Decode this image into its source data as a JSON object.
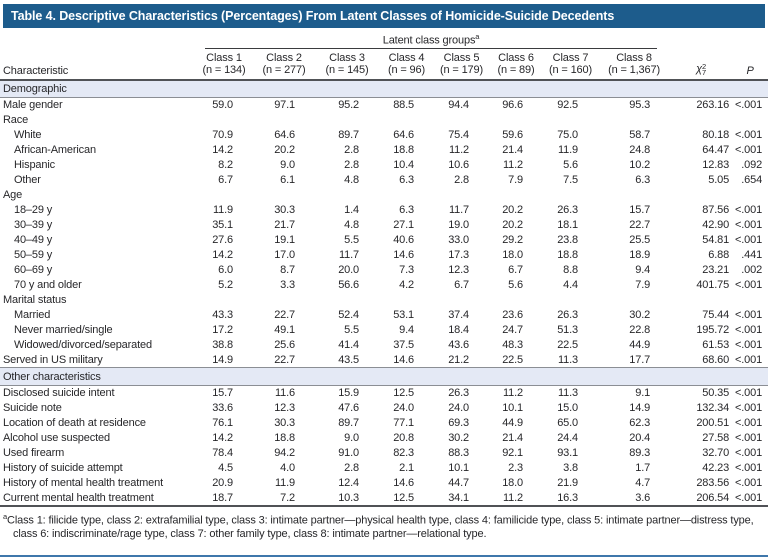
{
  "title": "Table 4. Descriptive Characteristics (Percentages) From Latent Classes of Homicide-Suicide Decedents",
  "header": {
    "characteristic_label": "Characteristic",
    "spanner": {
      "label": "Latent class groups",
      "superscript": "a"
    },
    "class_columns": [
      {
        "line1": "Class 1",
        "line2": "(n = 134)"
      },
      {
        "line1": "Class 2",
        "line2": "(n = 277)"
      },
      {
        "line1": "Class 3",
        "line2": "(n = 145)"
      },
      {
        "line1": "Class 4",
        "line2": "(n = 96)"
      },
      {
        "line1": "Class 5",
        "line2": "(n = 179)"
      },
      {
        "line1": "Class 6",
        "line2": "(n = 89)"
      },
      {
        "line1": "Class 7",
        "line2": "(n = 160)"
      },
      {
        "line1": "Class 8",
        "line2": "(n = 1,367)"
      }
    ],
    "chi": {
      "base": "χ",
      "sup": "2",
      "sub": "7"
    },
    "p_label": "P"
  },
  "rows": [
    {
      "type": "section",
      "label": "Demographic"
    },
    {
      "type": "data",
      "indent": false,
      "label": "Male gender",
      "values": [
        "59.0",
        "97.1",
        "95.2",
        "88.5",
        "94.4",
        "96.6",
        "92.5",
        "95.3"
      ],
      "chi": "263.16",
      "p": "<.001"
    },
    {
      "type": "subheader",
      "label": "Race"
    },
    {
      "type": "data",
      "indent": true,
      "label": "White",
      "values": [
        "70.9",
        "64.6",
        "89.7",
        "64.6",
        "75.4",
        "59.6",
        "75.0",
        "58.7"
      ],
      "chi": "80.18",
      "p": "<.001"
    },
    {
      "type": "data",
      "indent": true,
      "label": "African-American",
      "values": [
        "14.2",
        "20.2",
        "2.8",
        "18.8",
        "11.2",
        "21.4",
        "11.9",
        "24.8"
      ],
      "chi": "64.47",
      "p": "<.001"
    },
    {
      "type": "data",
      "indent": true,
      "label": "Hispanic",
      "values": [
        "8.2",
        "9.0",
        "2.8",
        "10.4",
        "10.6",
        "11.2",
        "5.6",
        "10.2"
      ],
      "chi": "12.83",
      "p": ".092"
    },
    {
      "type": "data",
      "indent": true,
      "label": "Other",
      "values": [
        "6.7",
        "6.1",
        "4.8",
        "6.3",
        "2.8",
        "7.9",
        "7.5",
        "6.3"
      ],
      "chi": "5.05",
      "p": ".654"
    },
    {
      "type": "subheader",
      "label": "Age"
    },
    {
      "type": "data",
      "indent": true,
      "label": "18–29 y",
      "values": [
        "11.9",
        "30.3",
        "1.4",
        "6.3",
        "11.7",
        "20.2",
        "26.3",
        "15.7"
      ],
      "chi": "87.56",
      "p": "<.001"
    },
    {
      "type": "data",
      "indent": true,
      "label": "30–39 y",
      "values": [
        "35.1",
        "21.7",
        "4.8",
        "27.1",
        "19.0",
        "20.2",
        "18.1",
        "22.7"
      ],
      "chi": "42.90",
      "p": "<.001"
    },
    {
      "type": "data",
      "indent": true,
      "label": "40–49 y",
      "values": [
        "27.6",
        "19.1",
        "5.5",
        "40.6",
        "33.0",
        "29.2",
        "23.8",
        "25.5"
      ],
      "chi": "54.81",
      "p": "<.001"
    },
    {
      "type": "data",
      "indent": true,
      "label": "50–59 y",
      "values": [
        "14.2",
        "17.0",
        "11.7",
        "14.6",
        "17.3",
        "18.0",
        "18.8",
        "18.9"
      ],
      "chi": "6.88",
      "p": ".441"
    },
    {
      "type": "data",
      "indent": true,
      "label": "60–69 y",
      "values": [
        "6.0",
        "8.7",
        "20.0",
        "7.3",
        "12.3",
        "6.7",
        "8.8",
        "9.4"
      ],
      "chi": "23.21",
      "p": ".002"
    },
    {
      "type": "data",
      "indent": true,
      "label": "70 y and older",
      "values": [
        "5.2",
        "3.3",
        "56.6",
        "4.2",
        "6.7",
        "5.6",
        "4.4",
        "7.9"
      ],
      "chi": "401.75",
      "p": "<.001"
    },
    {
      "type": "subheader",
      "label": "Marital status"
    },
    {
      "type": "data",
      "indent": true,
      "label": "Married",
      "values": [
        "43.3",
        "22.7",
        "52.4",
        "53.1",
        "37.4",
        "23.6",
        "26.3",
        "30.2"
      ],
      "chi": "75.44",
      "p": "<.001"
    },
    {
      "type": "data",
      "indent": true,
      "label": "Never married/single",
      "values": [
        "17.2",
        "49.1",
        "5.5",
        "9.4",
        "18.4",
        "24.7",
        "51.3",
        "22.8"
      ],
      "chi": "195.72",
      "p": "<.001"
    },
    {
      "type": "data",
      "indent": true,
      "label": "Widowed/divorced/separated",
      "values": [
        "38.8",
        "25.6",
        "41.4",
        "37.5",
        "43.6",
        "48.3",
        "22.5",
        "44.9"
      ],
      "chi": "61.53",
      "p": "<.001"
    },
    {
      "type": "data",
      "indent": false,
      "label": "Served in US military",
      "values": [
        "14.9",
        "22.7",
        "43.5",
        "14.6",
        "21.2",
        "22.5",
        "11.3",
        "17.7"
      ],
      "chi": "68.60",
      "p": "<.001"
    },
    {
      "type": "section",
      "label": "Other characteristics"
    },
    {
      "type": "data",
      "indent": false,
      "label": "Disclosed suicide intent",
      "values": [
        "15.7",
        "11.6",
        "15.9",
        "12.5",
        "26.3",
        "11.2",
        "11.3",
        "9.1"
      ],
      "chi": "50.35",
      "p": "<.001"
    },
    {
      "type": "data",
      "indent": false,
      "label": "Suicide note",
      "values": [
        "33.6",
        "12.3",
        "47.6",
        "24.0",
        "24.0",
        "10.1",
        "15.0",
        "14.9"
      ],
      "chi": "132.34",
      "p": "<.001"
    },
    {
      "type": "data",
      "indent": false,
      "label": "Location of death at residence",
      "values": [
        "76.1",
        "30.3",
        "89.7",
        "77.1",
        "69.3",
        "44.9",
        "65.0",
        "62.3"
      ],
      "chi": "200.51",
      "p": "<.001"
    },
    {
      "type": "data",
      "indent": false,
      "label": "Alcohol use suspected",
      "values": [
        "14.2",
        "18.8",
        "9.0",
        "20.8",
        "30.2",
        "21.4",
        "24.4",
        "20.4"
      ],
      "chi": "27.58",
      "p": "<.001"
    },
    {
      "type": "data",
      "indent": false,
      "label": "Used firearm",
      "values": [
        "78.4",
        "94.2",
        "91.0",
        "82.3",
        "88.3",
        "92.1",
        "93.1",
        "89.3"
      ],
      "chi": "32.70",
      "p": "<.001"
    },
    {
      "type": "data",
      "indent": false,
      "label": "History of suicide attempt",
      "values": [
        "4.5",
        "4.0",
        "2.8",
        "2.1",
        "10.1",
        "2.3",
        "3.8",
        "1.7"
      ],
      "chi": "42.23",
      "p": "<.001"
    },
    {
      "type": "data",
      "indent": false,
      "label": "History of mental health treatment",
      "values": [
        "20.9",
        "11.9",
        "12.4",
        "14.6",
        "44.7",
        "18.0",
        "21.9",
        "4.7"
      ],
      "chi": "283.56",
      "p": "<.001"
    },
    {
      "type": "data",
      "indent": false,
      "label": "Current mental health treatment",
      "values": [
        "18.7",
        "7.2",
        "10.3",
        "12.5",
        "34.1",
        "11.2",
        "16.3",
        "3.6"
      ],
      "chi": "206.54",
      "p": "<.001"
    }
  ],
  "footnote": {
    "superscript": "a",
    "text": "Class 1: filicide type, class 2: extrafamilial type, class 3: intimate partner—physical health type, class 4: familicide type, class 5: intimate partner—distress type, class 6: indiscriminate/rage type, class 7: other family type, class 8: intimate partner—relational type."
  },
  "colors": {
    "title_bar": "#1d5c8c",
    "section_band": "#e4e9f5",
    "bottom_rule": "#3f77ab"
  }
}
